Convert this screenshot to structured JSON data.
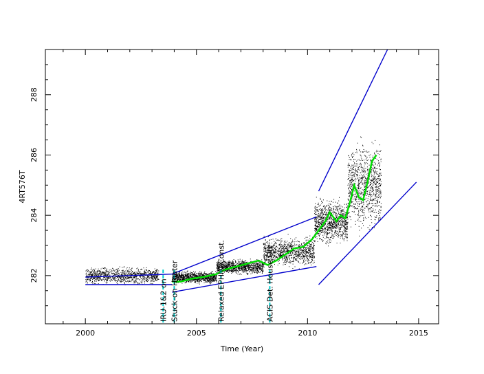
{
  "chart_data": {
    "type": "scatter",
    "xlabel": "Time (Year)",
    "ylabel": "4RT576T",
    "xlim": [
      1998.2,
      2015.9
    ],
    "ylim": [
      280.4,
      289.5
    ],
    "x_ticks": [
      2000,
      2005,
      2010,
      2015
    ],
    "y_ticks": [
      282,
      284,
      286,
      288
    ],
    "grid": false,
    "colors": {
      "scatter": "#000000",
      "trend": "#00dd00",
      "envelope": "#0000cc",
      "events": "#00cccc"
    },
    "events": [
      {
        "x": 2003.5,
        "label": "IRU-1&2 on"
      },
      {
        "x": 2004.0,
        "label": "Stuck-on Heater"
      },
      {
        "x": 2006.1,
        "label": "Relaxed EPHIN Const."
      },
      {
        "x": 2008.3,
        "label": "ACIS Det. House Off"
      }
    ],
    "scatter_bands": [
      {
        "x": [
          2000.0,
          2003.3
        ],
        "center": 282.0,
        "spread": 0.35
      },
      {
        "x": [
          2003.9,
          2005.9
        ],
        "center": 281.95,
        "spread": 0.25
      },
      {
        "x": [
          2005.9,
          2008.0
        ],
        "center": 282.3,
        "spread": 0.3
      },
      {
        "x": [
          2008.0,
          2010.3
        ],
        "center": 282.8,
        "spread": 0.6
      },
      {
        "x": [
          2010.3,
          2011.8
        ],
        "center": 283.8,
        "spread": 0.9
      },
      {
        "x": [
          2011.8,
          2013.3
        ],
        "center": 285.0,
        "spread": 1.8
      }
    ],
    "trend": {
      "x": [
        2003.9,
        2004.3,
        2004.8,
        2005.3,
        2005.9,
        2006.3,
        2006.8,
        2007.3,
        2007.8,
        2008.2,
        2008.6,
        2009.0,
        2009.4,
        2009.8,
        2010.2,
        2010.5,
        2010.8,
        2011.0,
        2011.3,
        2011.5,
        2011.7,
        2011.9,
        2012.1,
        2012.3,
        2012.5,
        2012.7,
        2012.9,
        2013.1
      ],
      "y": [
        281.8,
        281.8,
        281.9,
        281.95,
        282.05,
        282.2,
        282.3,
        282.4,
        282.5,
        282.35,
        282.5,
        282.7,
        282.9,
        282.95,
        283.2,
        283.5,
        283.8,
        284.1,
        283.8,
        284.0,
        283.9,
        284.4,
        285.0,
        284.6,
        284.5,
        285.1,
        285.8,
        286.0
      ]
    },
    "envelope": [
      {
        "x": [
          2000.0,
          2003.9
        ],
        "y": [
          281.95,
          282.05
        ]
      },
      {
        "x": [
          2000.0,
          2003.9
        ],
        "y": [
          281.7,
          281.7
        ]
      },
      {
        "x": [
          2003.9,
          2010.4
        ],
        "y": [
          282.05,
          283.95
        ]
      },
      {
        "x": [
          2003.9,
          2010.4
        ],
        "y": [
          281.45,
          282.3
        ]
      },
      {
        "x": [
          2010.5,
          2013.6
        ],
        "y": [
          284.8,
          289.5
        ]
      },
      {
        "x": [
          2010.5,
          2014.9
        ],
        "y": [
          281.7,
          285.1
        ]
      }
    ]
  }
}
